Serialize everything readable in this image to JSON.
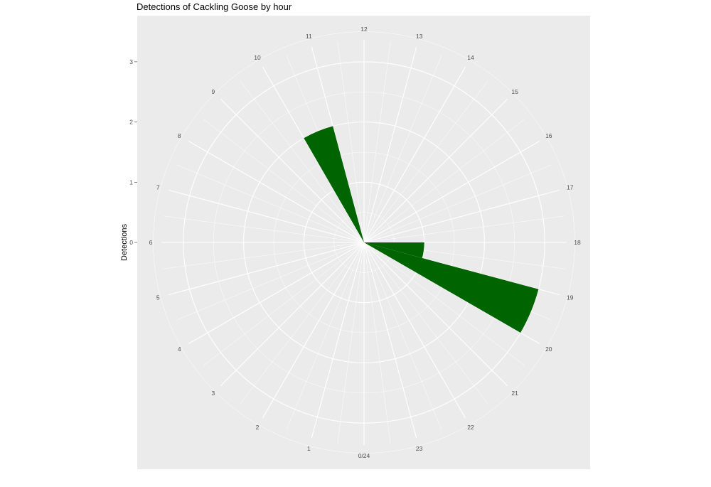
{
  "chart_data": {
    "type": "bar",
    "polar": true,
    "title": "Detections of Cackling Goose by hour",
    "ylabel": "Detections",
    "xlabel": "",
    "categories": [
      "0/24",
      "1",
      "2",
      "3",
      "4",
      "5",
      "6",
      "7",
      "8",
      "9",
      "10",
      "11",
      "12",
      "13",
      "14",
      "15",
      "16",
      "17",
      "18",
      "19",
      "20",
      "21",
      "22",
      "23"
    ],
    "values": [
      0,
      0,
      0,
      0,
      0,
      0,
      0,
      0,
      0,
      0,
      2,
      0,
      0,
      0,
      0,
      0,
      0,
      0,
      1,
      3,
      0,
      0,
      0,
      0
    ],
    "ylim": [
      0,
      3
    ],
    "y_ticks": [
      "0",
      "1",
      "2",
      "3"
    ],
    "grid": true,
    "bar_color": "#006400",
    "panel_color": "#ebebeb"
  }
}
